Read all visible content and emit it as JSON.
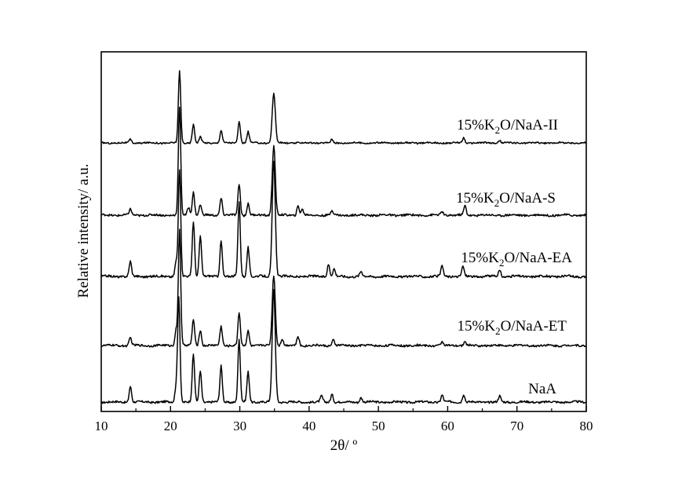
{
  "chart_data": {
    "type": "line",
    "xlabel": "2θ/ º",
    "ylabel": "Relative intensity/ a.u.",
    "xlim": [
      10,
      80
    ],
    "xticks": [
      10,
      20,
      30,
      40,
      50,
      60,
      70,
      80
    ],
    "y_tick_labels": false,
    "grid": false,
    "legend": "none",
    "series_label_position": "right-above-curve",
    "series": [
      {
        "name": "NaA",
        "baseline": 0,
        "peaks": [
          [
            14.2,
            0.14
          ],
          [
            20.8,
            0.13
          ],
          [
            21.2,
            0.91
          ],
          [
            23.3,
            0.41
          ],
          [
            24.3,
            0.27
          ],
          [
            27.3,
            0.31
          ],
          [
            29.9,
            0.54
          ],
          [
            31.2,
            0.26
          ],
          [
            34.9,
            0.97
          ],
          [
            41.8,
            0.05
          ],
          [
            43.3,
            0.07
          ],
          [
            47.5,
            0.04
          ],
          [
            59.2,
            0.06
          ],
          [
            62.3,
            0.07
          ],
          [
            67.5,
            0.05
          ]
        ]
      },
      {
        "name": "15%K2O/NaA-ET",
        "label_parts": [
          "15%K",
          "2",
          "O/NaA-ET"
        ],
        "baseline": 1,
        "peaks": [
          [
            14.2,
            0.07
          ],
          [
            20.8,
            0.14
          ],
          [
            21.3,
            1.02
          ],
          [
            23.3,
            0.23
          ],
          [
            24.3,
            0.14
          ],
          [
            27.3,
            0.17
          ],
          [
            29.9,
            0.29
          ],
          [
            31.2,
            0.13
          ],
          [
            34.9,
            0.62
          ],
          [
            36.1,
            0.06
          ],
          [
            38.4,
            0.08
          ],
          [
            43.5,
            0.05
          ],
          [
            59.2,
            0.03
          ],
          [
            62.5,
            0.03
          ]
        ]
      },
      {
        "name": "15%K2O/NaA-EA",
        "label_parts": [
          "15%K",
          "2",
          "O/NaA-EA"
        ],
        "baseline": 2,
        "peaks": [
          [
            14.2,
            0.12
          ],
          [
            20.8,
            0.12
          ],
          [
            21.3,
            0.87
          ],
          [
            23.3,
            0.45
          ],
          [
            24.3,
            0.33
          ],
          [
            27.3,
            0.29
          ],
          [
            29.9,
            0.6
          ],
          [
            31.2,
            0.24
          ],
          [
            34.9,
            0.94
          ],
          [
            42.8,
            0.1
          ],
          [
            43.6,
            0.06
          ],
          [
            47.5,
            0.04
          ],
          [
            59.2,
            0.08
          ],
          [
            62.2,
            0.08
          ],
          [
            67.5,
            0.05
          ]
        ]
      },
      {
        "name": "15%K2O/NaA-S",
        "label_parts": [
          "15%K",
          "2",
          "O/NaA-S"
        ],
        "baseline": 3,
        "peaks": [
          [
            14.2,
            0.05
          ],
          [
            21.3,
            0.93
          ],
          [
            22.6,
            0.07
          ],
          [
            23.3,
            0.2
          ],
          [
            24.3,
            0.09
          ],
          [
            27.3,
            0.15
          ],
          [
            29.9,
            0.27
          ],
          [
            31.2,
            0.1
          ],
          [
            34.9,
            0.6
          ],
          [
            38.4,
            0.08
          ],
          [
            39.0,
            0.05
          ],
          [
            43.3,
            0.04
          ],
          [
            59.2,
            0.03
          ],
          [
            62.5,
            0.08
          ]
        ]
      },
      {
        "name": "15%K2O/NaA-II",
        "label_parts": [
          "15%K",
          "2",
          "O/NaA-II"
        ],
        "baseline": 4,
        "peaks": [
          [
            14.2,
            0.04
          ],
          [
            21.3,
            0.84
          ],
          [
            23.3,
            0.22
          ],
          [
            24.3,
            0.07
          ],
          [
            27.3,
            0.15
          ],
          [
            29.9,
            0.25
          ],
          [
            31.2,
            0.13
          ],
          [
            34.9,
            0.59
          ],
          [
            43.3,
            0.04
          ],
          [
            62.3,
            0.06
          ],
          [
            67.5,
            0.03
          ]
        ]
      }
    ]
  }
}
